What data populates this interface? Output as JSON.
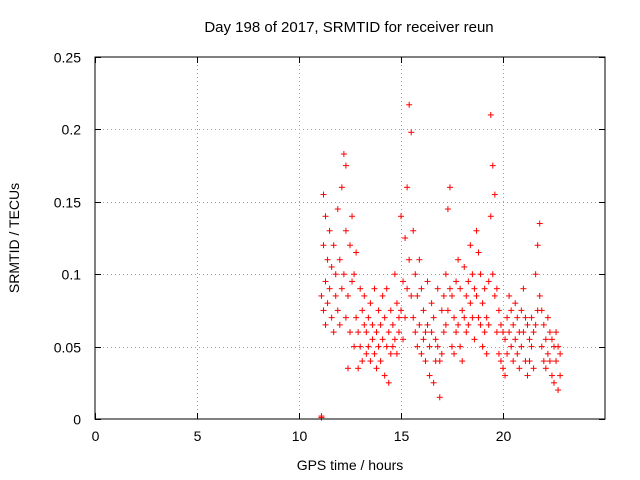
{
  "chart_data": {
    "type": "scatter",
    "title": "Day 198 of 2017, SRMTID for receiver reun",
    "xlabel": "GPS time / hours",
    "ylabel": "SRMTID / TECUs",
    "xlim": [
      0,
      25
    ],
    "ylim": [
      0,
      0.25
    ],
    "xticks": [
      0,
      5,
      10,
      15,
      20
    ],
    "xtick_labels": [
      "0",
      "5",
      "10",
      "15",
      "20"
    ],
    "yticks": [
      0,
      0.05,
      0.1,
      0.15,
      0.2,
      0.25
    ],
    "ytick_labels": [
      "0",
      "0.05",
      "0.1",
      "0.15",
      "0.2",
      "0.25"
    ],
    "grid": true,
    "marker": "+",
    "color": "#ff0000",
    "series": [
      {
        "name": "SRMTID",
        "x": [
          11.1,
          11.1,
          11.1,
          11.2,
          11.2,
          11.2,
          11.3,
          11.3,
          11.3,
          11.4,
          11.4,
          11.5,
          11.5,
          11.6,
          11.6,
          11.7,
          11.7,
          11.8,
          11.8,
          11.9,
          11.9,
          12.0,
          12.0,
          12.1,
          12.1,
          12.2,
          12.2,
          12.3,
          12.3,
          12.3,
          12.4,
          12.4,
          12.5,
          12.5,
          12.6,
          12.6,
          12.7,
          12.7,
          12.8,
          12.8,
          12.9,
          12.9,
          13.0,
          13.0,
          13.1,
          13.1,
          13.2,
          13.2,
          13.3,
          13.3,
          13.4,
          13.4,
          13.5,
          13.5,
          13.6,
          13.6,
          13.7,
          13.7,
          13.8,
          13.8,
          13.9,
          13.9,
          14.0,
          14.0,
          14.1,
          14.1,
          14.2,
          14.2,
          14.3,
          14.3,
          14.4,
          14.4,
          14.5,
          14.5,
          14.6,
          14.6,
          14.7,
          14.7,
          14.8,
          14.8,
          14.9,
          14.9,
          15.0,
          15.0,
          15.1,
          15.1,
          15.2,
          15.2,
          15.3,
          15.3,
          15.4,
          15.4,
          15.5,
          15.5,
          15.6,
          15.6,
          15.7,
          15.7,
          15.8,
          15.8,
          15.9,
          15.9,
          16.0,
          16.0,
          16.1,
          16.1,
          16.2,
          16.2,
          16.3,
          16.3,
          16.4,
          16.4,
          16.5,
          16.5,
          16.6,
          16.6,
          16.7,
          16.7,
          16.8,
          16.8,
          16.9,
          16.9,
          17.0,
          17.0,
          17.1,
          17.1,
          17.2,
          17.2,
          17.3,
          17.3,
          17.4,
          17.4,
          17.5,
          17.5,
          17.6,
          17.6,
          17.7,
          17.7,
          17.8,
          17.8,
          17.9,
          17.9,
          18.0,
          18.0,
          18.1,
          18.1,
          18.2,
          18.2,
          18.3,
          18.3,
          18.4,
          18.4,
          18.5,
          18.5,
          18.6,
          18.6,
          18.7,
          18.7,
          18.8,
          18.8,
          18.9,
          18.9,
          19.0,
          19.0,
          19.1,
          19.1,
          19.2,
          19.2,
          19.3,
          19.3,
          19.4,
          19.4,
          19.5,
          19.5,
          19.6,
          19.6,
          19.7,
          19.7,
          19.8,
          19.8,
          19.9,
          19.9,
          20.0,
          20.0,
          20.1,
          20.1,
          20.2,
          20.2,
          20.3,
          20.3,
          20.4,
          20.4,
          20.5,
          20.5,
          20.6,
          20.6,
          20.7,
          20.7,
          20.8,
          20.8,
          20.9,
          20.9,
          21.0,
          21.0,
          21.1,
          21.1,
          21.2,
          21.2,
          21.3,
          21.3,
          21.4,
          21.4,
          21.5,
          21.5,
          21.6,
          21.6,
          21.7,
          21.7,
          21.8,
          21.8,
          21.9,
          21.9,
          22.0,
          22.0,
          22.1,
          22.1,
          22.2,
          22.2,
          22.3,
          22.3,
          22.4,
          22.4,
          22.5,
          22.5,
          22.6,
          22.6,
          22.7,
          22.7,
          22.8,
          22.8
        ],
        "y": [
          0.001,
          0.002,
          0.085,
          0.155,
          0.12,
          0.075,
          0.14,
          0.095,
          0.065,
          0.11,
          0.08,
          0.13,
          0.09,
          0.105,
          0.07,
          0.12,
          0.06,
          0.1,
          0.085,
          0.145,
          0.075,
          0.11,
          0.065,
          0.16,
          0.09,
          0.183,
          0.1,
          0.175,
          0.07,
          0.13,
          0.085,
          0.035,
          0.12,
          0.06,
          0.14,
          0.095,
          0.1,
          0.05,
          0.115,
          0.07,
          0.06,
          0.035,
          0.09,
          0.05,
          0.075,
          0.04,
          0.065,
          0.085,
          0.045,
          0.06,
          0.07,
          0.05,
          0.08,
          0.04,
          0.055,
          0.065,
          0.09,
          0.045,
          0.06,
          0.035,
          0.075,
          0.05,
          0.065,
          0.04,
          0.085,
          0.055,
          0.07,
          0.03,
          0.05,
          0.09,
          0.06,
          0.025,
          0.075,
          0.045,
          0.065,
          0.05,
          0.1,
          0.055,
          0.08,
          0.045,
          0.07,
          0.06,
          0.14,
          0.075,
          0.095,
          0.055,
          0.125,
          0.07,
          0.16,
          0.09,
          0.217,
          0.11,
          0.198,
          0.085,
          0.13,
          0.07,
          0.1,
          0.06,
          0.085,
          0.05,
          0.11,
          0.065,
          0.09,
          0.045,
          0.075,
          0.055,
          0.06,
          0.04,
          0.095,
          0.065,
          0.05,
          0.03,
          0.08,
          0.06,
          0.07,
          0.025,
          0.055,
          0.04,
          0.09,
          0.05,
          0.04,
          0.015,
          0.075,
          0.045,
          0.085,
          0.06,
          0.1,
          0.065,
          0.145,
          0.075,
          0.16,
          0.09,
          0.085,
          0.05,
          0.07,
          0.045,
          0.095,
          0.06,
          0.11,
          0.065,
          0.09,
          0.05,
          0.075,
          0.04,
          0.105,
          0.07,
          0.085,
          0.06,
          0.095,
          0.065,
          0.12,
          0.08,
          0.1,
          0.07,
          0.09,
          0.055,
          0.13,
          0.085,
          0.115,
          0.07,
          0.1,
          0.065,
          0.08,
          0.05,
          0.09,
          0.06,
          0.07,
          0.045,
          0.095,
          0.065,
          0.21,
          0.14,
          0.175,
          0.1,
          0.155,
          0.085,
          0.09,
          0.06,
          0.075,
          0.045,
          0.065,
          0.04,
          0.06,
          0.035,
          0.055,
          0.03,
          0.07,
          0.045,
          0.085,
          0.06,
          0.075,
          0.05,
          0.065,
          0.04,
          0.08,
          0.055,
          0.07,
          0.045,
          0.06,
          0.035,
          0.075,
          0.05,
          0.09,
          0.06,
          0.07,
          0.04,
          0.065,
          0.03,
          0.055,
          0.04,
          0.07,
          0.05,
          0.06,
          0.035,
          0.1,
          0.065,
          0.12,
          0.075,
          0.135,
          0.085,
          0.075,
          0.05,
          0.065,
          0.04,
          0.055,
          0.035,
          0.07,
          0.045,
          0.06,
          0.04,
          0.055,
          0.03,
          0.05,
          0.025,
          0.06,
          0.04,
          0.05,
          0.02,
          0.045,
          0.03
        ]
      }
    ]
  }
}
